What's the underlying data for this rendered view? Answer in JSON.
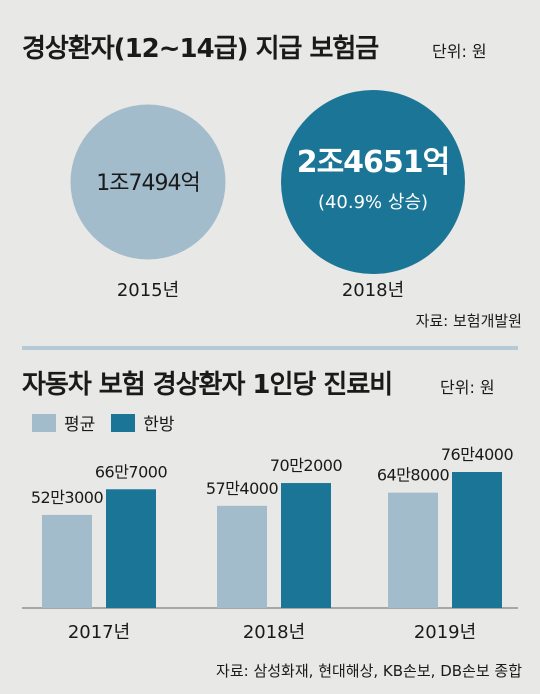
{
  "chart_data": [
    {
      "type": "bubble",
      "title": "경상환자(12~14급) 지급 보험금",
      "unit": "단위: 원",
      "categories": [
        "2015년",
        "2018년"
      ],
      "values": [
        17494,
        24651
      ],
      "value_labels": [
        "1조7494억",
        "2조4651억"
      ],
      "annotation": "(40.9% 상승)",
      "colors": [
        "#a3bccb",
        "#1b7597"
      ],
      "source": "자료: 보험개발원"
    },
    {
      "type": "bar",
      "title": "자동차 보험 경상환자 1인당 진료비",
      "unit": "단위: 원",
      "categories": [
        "2017년",
        "2018년",
        "2019년"
      ],
      "series": [
        {
          "name": "평균",
          "values": [
            523000,
            574000,
            648000
          ],
          "labels": [
            "52만3000",
            "57만4000",
            "64만8000"
          ],
          "color": "#a3bccb"
        },
        {
          "name": "한방",
          "values": [
            667000,
            702000,
            764000
          ],
          "labels": [
            "66만7000",
            "70만2000",
            "76만4000"
          ],
          "color": "#1b7597"
        }
      ],
      "source": "자료: 삼성화재, 현대해상, KB손보, DB손보 종합"
    }
  ]
}
